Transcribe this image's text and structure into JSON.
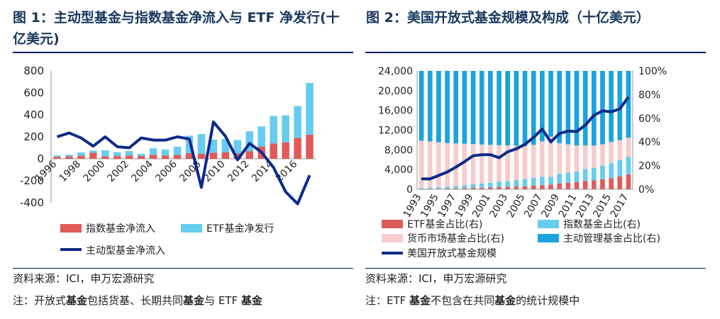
{
  "left": {
    "title": "图 1：主动型基金与指数基金净流入与 ETF 净发行(十亿美元)",
    "source": "资料来源：ICI，申万宏源研究",
    "note_prefix": "注：开放式",
    "note_bold1": "基金",
    "note_mid": "包括货基、长期共同",
    "note_bold2": "基金",
    "note_mid2": "与 ETF ",
    "note_bold3": "基金",
    "chart_data": {
      "type": "bar",
      "x": [
        1996,
        1997,
        1998,
        1999,
        2000,
        2001,
        2002,
        2003,
        2004,
        2005,
        2006,
        2007,
        2008,
        2009,
        2010,
        2011,
        2012,
        2013,
        2014,
        2015,
        2016,
        2017
      ],
      "xticks": [
        "1996",
        "1998",
        "2000",
        "2002",
        "2004",
        "2006",
        "2008",
        "2010",
        "2012",
        "2014",
        "2016"
      ],
      "ylim": [
        -400,
        800
      ],
      "yticks": [
        "800",
        "600",
        "400",
        "200",
        "0",
        "-200",
        "-400"
      ],
      "series": [
        {
          "name": "指数基金净流入",
          "kind": "bar",
          "color": "#e05a5a",
          "values": [
            18,
            22,
            28,
            55,
            22,
            25,
            30,
            25,
            35,
            30,
            35,
            50,
            45,
            55,
            60,
            50,
            70,
            110,
            140,
            150,
            190,
            220
          ]
        },
        {
          "name": "ETF基金净发行",
          "kind": "bar",
          "color": "#66ccf0",
          "values": [
            12,
            15,
            30,
            20,
            55,
            35,
            40,
            20,
            60,
            55,
            75,
            160,
            180,
            120,
            120,
            120,
            180,
            185,
            250,
            245,
            290,
            470
          ]
        },
        {
          "name": "主动型基金净流入",
          "kind": "line",
          "color": "#0d2a8a",
          "values": [
            200,
            235,
            190,
            115,
            200,
            110,
            100,
            190,
            170,
            170,
            200,
            180,
            -260,
            335,
            205,
            -10,
            140,
            60,
            -80,
            -300,
            -410,
            -150
          ]
        }
      ]
    }
  },
  "right": {
    "title": "图 2：美国开放式基金规模及构成（十亿美元）",
    "source": "资料来源：ICI，申万宏源研究",
    "note_prefix": "注：ETF ",
    "note_bold1": "基金",
    "note_mid": "不包含在共同",
    "note_bold2": "基金",
    "note_end": "的统计规模中",
    "chart_data": {
      "type": "bar",
      "x": [
        1993,
        1994,
        1995,
        1996,
        1997,
        1998,
        1999,
        2000,
        2001,
        2002,
        2003,
        2004,
        2005,
        2006,
        2007,
        2008,
        2009,
        2010,
        2011,
        2012,
        2013,
        2014,
        2015,
        2016,
        2017
      ],
      "xticks": [
        "1993",
        "1995",
        "1997",
        "1999",
        "2001",
        "2003",
        "2005",
        "2007",
        "2009",
        "2011",
        "2013",
        "2015",
        "2017"
      ],
      "ylim_left": [
        0,
        24000
      ],
      "yticks_left": [
        "24,000",
        "20,000",
        "16,000",
        "12,000",
        "8,000",
        "4,000",
        "0"
      ],
      "ylim_right": [
        0,
        100
      ],
      "yticks_right": [
        "100%",
        "80%",
        "60%",
        "40%",
        "20%",
        "0%"
      ],
      "series": [
        {
          "name": "ETF基金占比(右)",
          "kind": "stack",
          "color": "#e05a5a",
          "values": [
            0.3,
            0.4,
            0.5,
            0.6,
            0.7,
            1,
            1.2,
            1.3,
            1.5,
            1.8,
            2,
            2.3,
            2.6,
            3,
            3.5,
            4,
            5,
            5.5,
            6,
            7,
            7.5,
            8.5,
            9.5,
            11,
            12.5
          ]
        },
        {
          "name": "指数基金占比(右)",
          "kind": "stack",
          "color": "#66ccf0",
          "values": [
            0.7,
            1,
            1.2,
            1.5,
            2,
            2.5,
            3,
            3.5,
            4,
            4.5,
            5,
            5.5,
            6,
            6.5,
            7,
            6.5,
            8,
            8.5,
            9,
            10,
            10.5,
            11.5,
            12.5,
            13.5,
            15
          ]
        },
        {
          "name": "货币市场基金占比(右)",
          "kind": "stack",
          "color": "#f6cccc",
          "values": [
            40,
            39,
            38,
            37,
            36,
            35,
            34,
            33,
            32,
            31,
            30,
            29,
            28,
            28,
            30,
            34,
            26,
            24,
            22,
            20,
            19,
            18,
            18,
            17,
            16
          ]
        },
        {
          "name": "主动管理基金占比(右)",
          "kind": "stack",
          "color": "#1ca3dd",
          "values": [
            59,
            59.6,
            60.3,
            60.9,
            61.3,
            61.5,
            61.8,
            62.2,
            62.5,
            62.7,
            63,
            63.2,
            63.4,
            62.5,
            59.5,
            55.5,
            61,
            62,
            63,
            63,
            63,
            62,
            60,
            58.5,
            56.5
          ]
        },
        {
          "name": "美国开放式基金规模",
          "kind": "line",
          "color": "#0d2a8a",
          "values": [
            2100,
            2100,
            2800,
            3500,
            4500,
            5600,
            6800,
            7000,
            7000,
            6400,
            7600,
            8200,
            9100,
            10500,
            12200,
            9600,
            11300,
            11800,
            11700,
            13000,
            15000,
            15900,
            15700,
            16300,
            18700
          ]
        }
      ]
    }
  }
}
